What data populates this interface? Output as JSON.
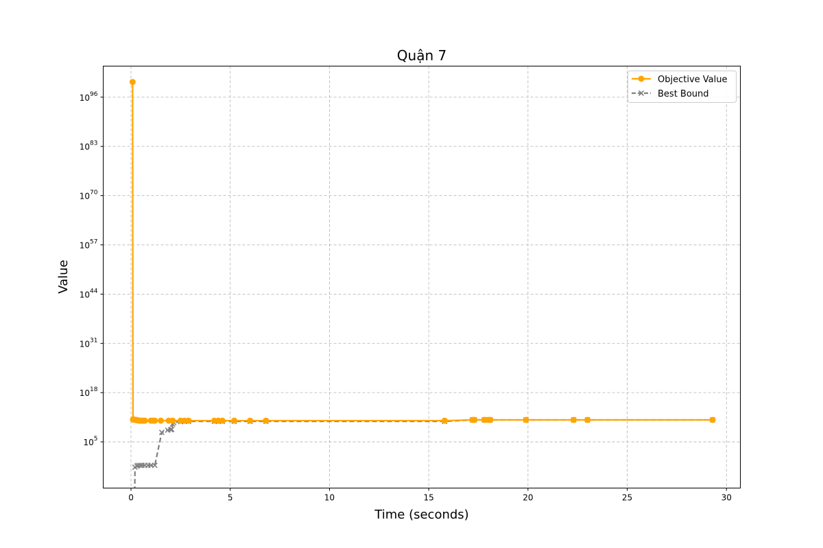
{
  "chart_data": {
    "type": "line",
    "title": "Quận 7",
    "xlabel": "Time (seconds)",
    "ylabel": "Value",
    "xlim": [
      -1.4,
      30.7
    ],
    "ylog_exp_lim": [
      -7.2,
      104.2
    ],
    "x_ticks": [
      0,
      5,
      10,
      15,
      20,
      25,
      30
    ],
    "y_tick_exps": [
      5,
      18,
      31,
      44,
      57,
      70,
      83,
      96
    ],
    "y_tick_base": "10",
    "grid": true,
    "legend_position": "upper right",
    "series": [
      {
        "name": "Objective Value",
        "color": "#FFA500",
        "linestyle": "solid",
        "marker": "circle",
        "points_log10": [
          [
            0.08,
            100.0
          ],
          [
            0.1,
            10.9
          ],
          [
            0.15,
            10.9
          ],
          [
            0.2,
            10.8
          ],
          [
            0.25,
            10.8
          ],
          [
            0.3,
            10.7
          ],
          [
            0.35,
            10.7
          ],
          [
            0.4,
            10.6
          ],
          [
            0.45,
            10.6
          ],
          [
            0.5,
            10.6
          ],
          [
            0.6,
            10.6
          ],
          [
            0.7,
            10.6
          ],
          [
            1.0,
            10.6
          ],
          [
            1.1,
            10.6
          ],
          [
            1.2,
            10.6
          ],
          [
            1.5,
            10.6
          ],
          [
            1.9,
            10.6
          ],
          [
            2.1,
            10.6
          ],
          [
            2.5,
            10.6
          ],
          [
            2.7,
            10.6
          ],
          [
            2.9,
            10.6
          ],
          [
            4.2,
            10.6
          ],
          [
            4.4,
            10.6
          ],
          [
            4.6,
            10.6
          ],
          [
            5.2,
            10.6
          ],
          [
            6.0,
            10.6
          ],
          [
            6.8,
            10.6
          ],
          [
            15.8,
            10.6
          ],
          [
            17.2,
            10.8
          ],
          [
            17.3,
            10.8
          ],
          [
            17.8,
            10.8
          ],
          [
            18.0,
            10.8
          ],
          [
            18.1,
            10.8
          ],
          [
            19.9,
            10.8
          ],
          [
            22.3,
            10.8
          ],
          [
            23.0,
            10.8
          ],
          [
            29.3,
            10.8
          ]
        ]
      },
      {
        "name": "Best Bound",
        "color": "#808080",
        "linestyle": "dashed",
        "marker": "x",
        "points_log10": [
          [
            0.18,
            -14.0
          ],
          [
            0.2,
            -1.7
          ],
          [
            0.3,
            -1.4
          ],
          [
            0.35,
            -1.2
          ],
          [
            0.45,
            -1.2
          ],
          [
            0.55,
            -1.2
          ],
          [
            0.7,
            -1.2
          ],
          [
            0.85,
            -1.2
          ],
          [
            1.0,
            -1.2
          ],
          [
            1.2,
            -1.2
          ],
          [
            1.55,
            7.5
          ],
          [
            1.85,
            8.1
          ],
          [
            2.0,
            8.2
          ],
          [
            2.05,
            8.3
          ],
          [
            2.1,
            9.7
          ],
          [
            2.15,
            10.1
          ],
          [
            2.5,
            10.3
          ],
          [
            2.7,
            10.4
          ],
          [
            2.9,
            10.4
          ],
          [
            4.2,
            10.4
          ],
          [
            4.4,
            10.4
          ],
          [
            4.6,
            10.4
          ],
          [
            5.2,
            10.4
          ],
          [
            6.0,
            10.4
          ],
          [
            6.8,
            10.4
          ],
          [
            15.8,
            10.4
          ],
          [
            17.2,
            10.8
          ],
          [
            17.3,
            10.8
          ],
          [
            17.8,
            10.8
          ],
          [
            18.0,
            10.8
          ],
          [
            18.1,
            10.8
          ],
          [
            19.9,
            10.8
          ],
          [
            22.3,
            10.8
          ],
          [
            23.0,
            10.8
          ],
          [
            29.3,
            10.8
          ]
        ]
      }
    ]
  }
}
